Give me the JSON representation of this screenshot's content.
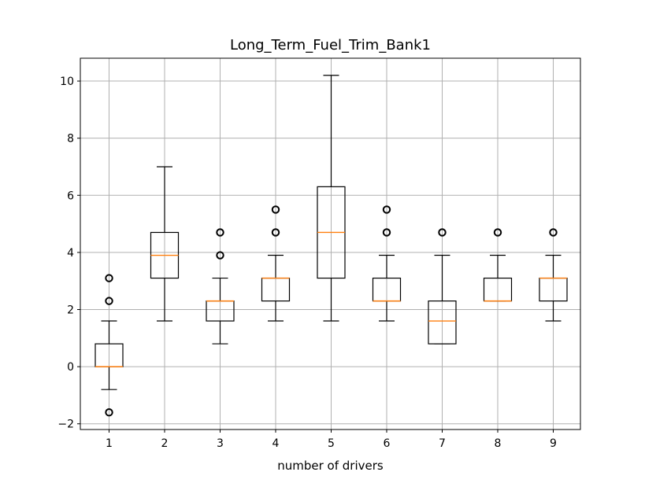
{
  "chart_data": {
    "type": "box",
    "title": "Long_Term_Fuel_Trim_Bank1",
    "xlabel": "number of drivers",
    "ylabel": "",
    "ylim": [
      -2.2,
      10.8
    ],
    "yticks": [
      -2,
      0,
      2,
      4,
      6,
      8,
      10
    ],
    "ytick_labels": [
      "−2",
      "0",
      "2",
      "4",
      "6",
      "8",
      "10"
    ],
    "grid": true,
    "colors": {
      "median": "#ff7f0e",
      "box": "#000000",
      "grid": "#b0b0b0",
      "background": "#ffffff"
    },
    "categories": [
      "1",
      "2",
      "3",
      "4",
      "5",
      "6",
      "7",
      "8",
      "9"
    ],
    "boxes": [
      {
        "category": "1",
        "whisker_low": -0.8,
        "q1": 0.0,
        "median": 0.0,
        "q3": 0.8,
        "whisker_high": 1.6,
        "outliers": [
          3.1,
          2.3,
          -1.6
        ]
      },
      {
        "category": "2",
        "whisker_low": 1.6,
        "q1": 3.1,
        "median": 3.9,
        "q3": 4.7,
        "whisker_high": 7.0,
        "outliers": []
      },
      {
        "category": "3",
        "whisker_low": 0.8,
        "q1": 1.6,
        "median": 2.3,
        "q3": 2.3,
        "whisker_high": 3.1,
        "outliers": [
          4.7,
          3.9
        ]
      },
      {
        "category": "4",
        "whisker_low": 1.6,
        "q1": 2.3,
        "median": 3.1,
        "q3": 3.1,
        "whisker_high": 3.9,
        "outliers": [
          5.5,
          4.7
        ]
      },
      {
        "category": "5",
        "whisker_low": 1.6,
        "q1": 3.1,
        "median": 4.7,
        "q3": 6.3,
        "whisker_high": 10.2,
        "outliers": []
      },
      {
        "category": "6",
        "whisker_low": 1.6,
        "q1": 2.3,
        "median": 2.3,
        "q3": 3.1,
        "whisker_high": 3.9,
        "outliers": [
          5.5,
          4.7
        ]
      },
      {
        "category": "7",
        "whisker_low": 0.8,
        "q1": 0.8,
        "median": 1.6,
        "q3": 2.3,
        "whisker_high": 3.9,
        "outliers": [
          4.7
        ]
      },
      {
        "category": "8",
        "whisker_low": 2.3,
        "q1": 2.3,
        "median": 2.3,
        "q3": 3.1,
        "whisker_high": 3.9,
        "outliers": [
          4.7
        ]
      },
      {
        "category": "9",
        "whisker_low": 1.6,
        "q1": 2.3,
        "median": 3.1,
        "q3": 3.1,
        "whisker_high": 3.9,
        "outliers": [
          4.7
        ]
      }
    ]
  }
}
